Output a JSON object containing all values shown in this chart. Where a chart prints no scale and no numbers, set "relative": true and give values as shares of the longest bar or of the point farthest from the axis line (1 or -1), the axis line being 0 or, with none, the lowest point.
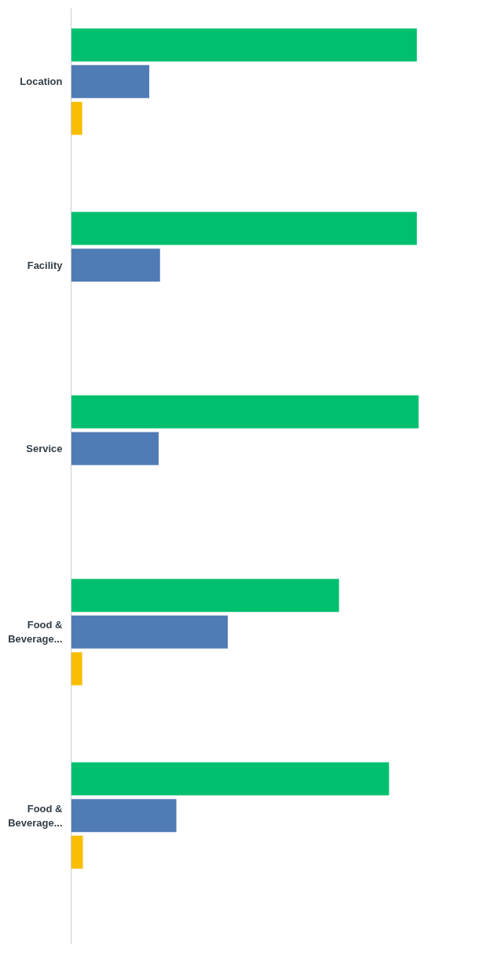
{
  "chart_data": {
    "type": "bar",
    "orientation": "horizontal",
    "relative": true,
    "categories": [
      "Location",
      "Facility",
      "Service",
      "Food & Beverage...",
      "Food & Beverage..."
    ],
    "series": [
      {
        "color": "#00bf6f",
        "values": [
          0.995,
          0.995,
          1,
          0.771,
          0.915
        ]
      },
      {
        "color": "#507cb6",
        "values": [
          0.225,
          0.256,
          0.252,
          0.451,
          0.303
        ]
      },
      {
        "color": "#f9be00",
        "values": [
          0.032,
          null,
          null,
          0.032,
          0.034
        ]
      }
    ]
  }
}
